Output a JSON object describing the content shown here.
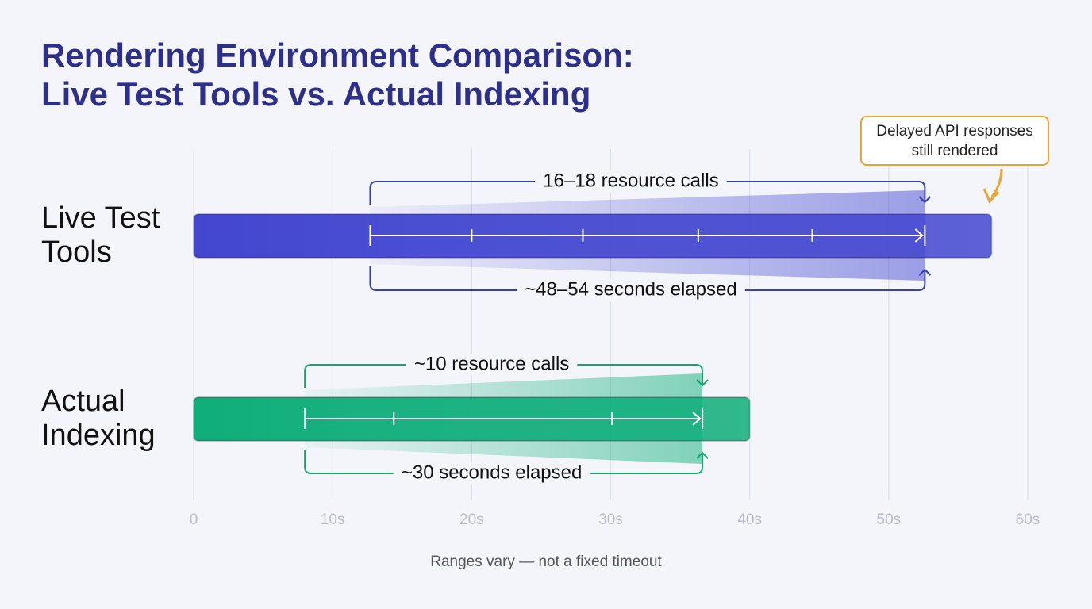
{
  "chart_data": {
    "type": "bar",
    "orientation": "horizontal",
    "title": [
      "Rendering Environment Comparison:",
      "Live Test Tools vs. Actual Indexing"
    ],
    "categories": [
      "Live Test Tools",
      "Actual Indexing"
    ],
    "values": [
      57.4,
      40
    ],
    "colors": [
      "#4347d0",
      "#0fae7a"
    ],
    "markers": [
      [
        12.7,
        20,
        28,
        36.3,
        44.5,
        52.6
      ],
      [
        8,
        14.4,
        30.1,
        36.6
      ]
    ],
    "top_labels": [
      "16–18 resource calls",
      "~10 resource calls"
    ],
    "bottom_labels": [
      "~48–54 seconds elapsed",
      "~30 seconds elapsed"
    ],
    "callout": "Delayed API responses still rendered",
    "xlim": [
      0,
      60
    ],
    "xticks": [
      0,
      {
        "value": 10,
        "label": "10s"
      },
      {
        "value": 20,
        "label": "20s"
      },
      {
        "value": 30,
        "label": "30s"
      },
      {
        "value": 40,
        "label": "40s"
      },
      {
        "value": 50,
        "label": "50s"
      },
      {
        "value": 60,
        "label": "60s"
      }
    ],
    "grid": true,
    "footnote": "Ranges vary — not a fixed timeout"
  }
}
